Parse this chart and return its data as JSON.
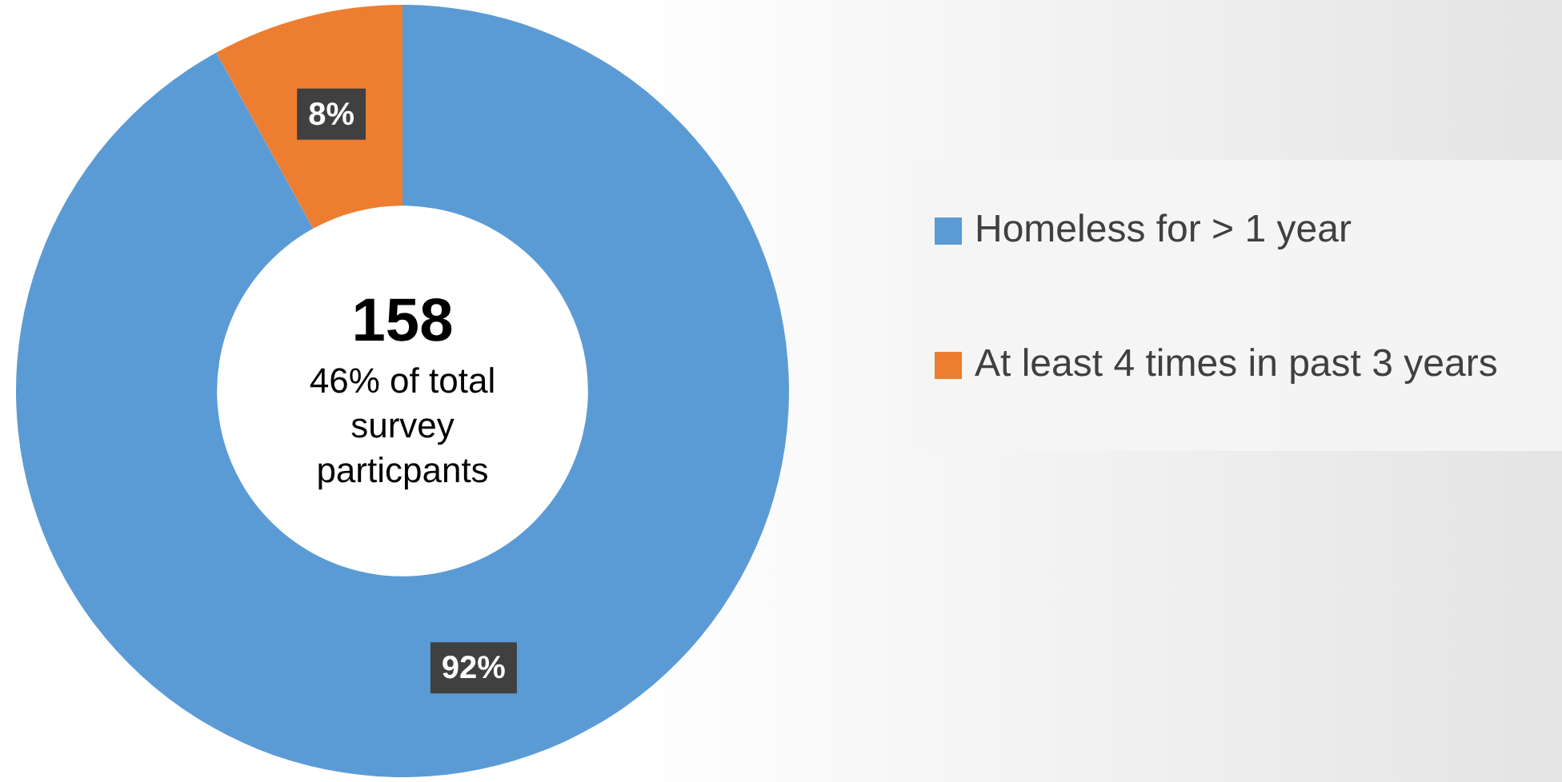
{
  "chart_data": {
    "type": "donut",
    "categories": [
      "Homeless for > 1 year",
      "At least 4 times in past 3 years"
    ],
    "values": [
      92,
      8
    ],
    "colors": [
      "#5b9bd5",
      "#ed7d31"
    ],
    "value_labels": [
      "92%",
      "8%"
    ],
    "annotations": [
      "158",
      "46% of total survey particpants"
    ],
    "legend": "right"
  }
}
